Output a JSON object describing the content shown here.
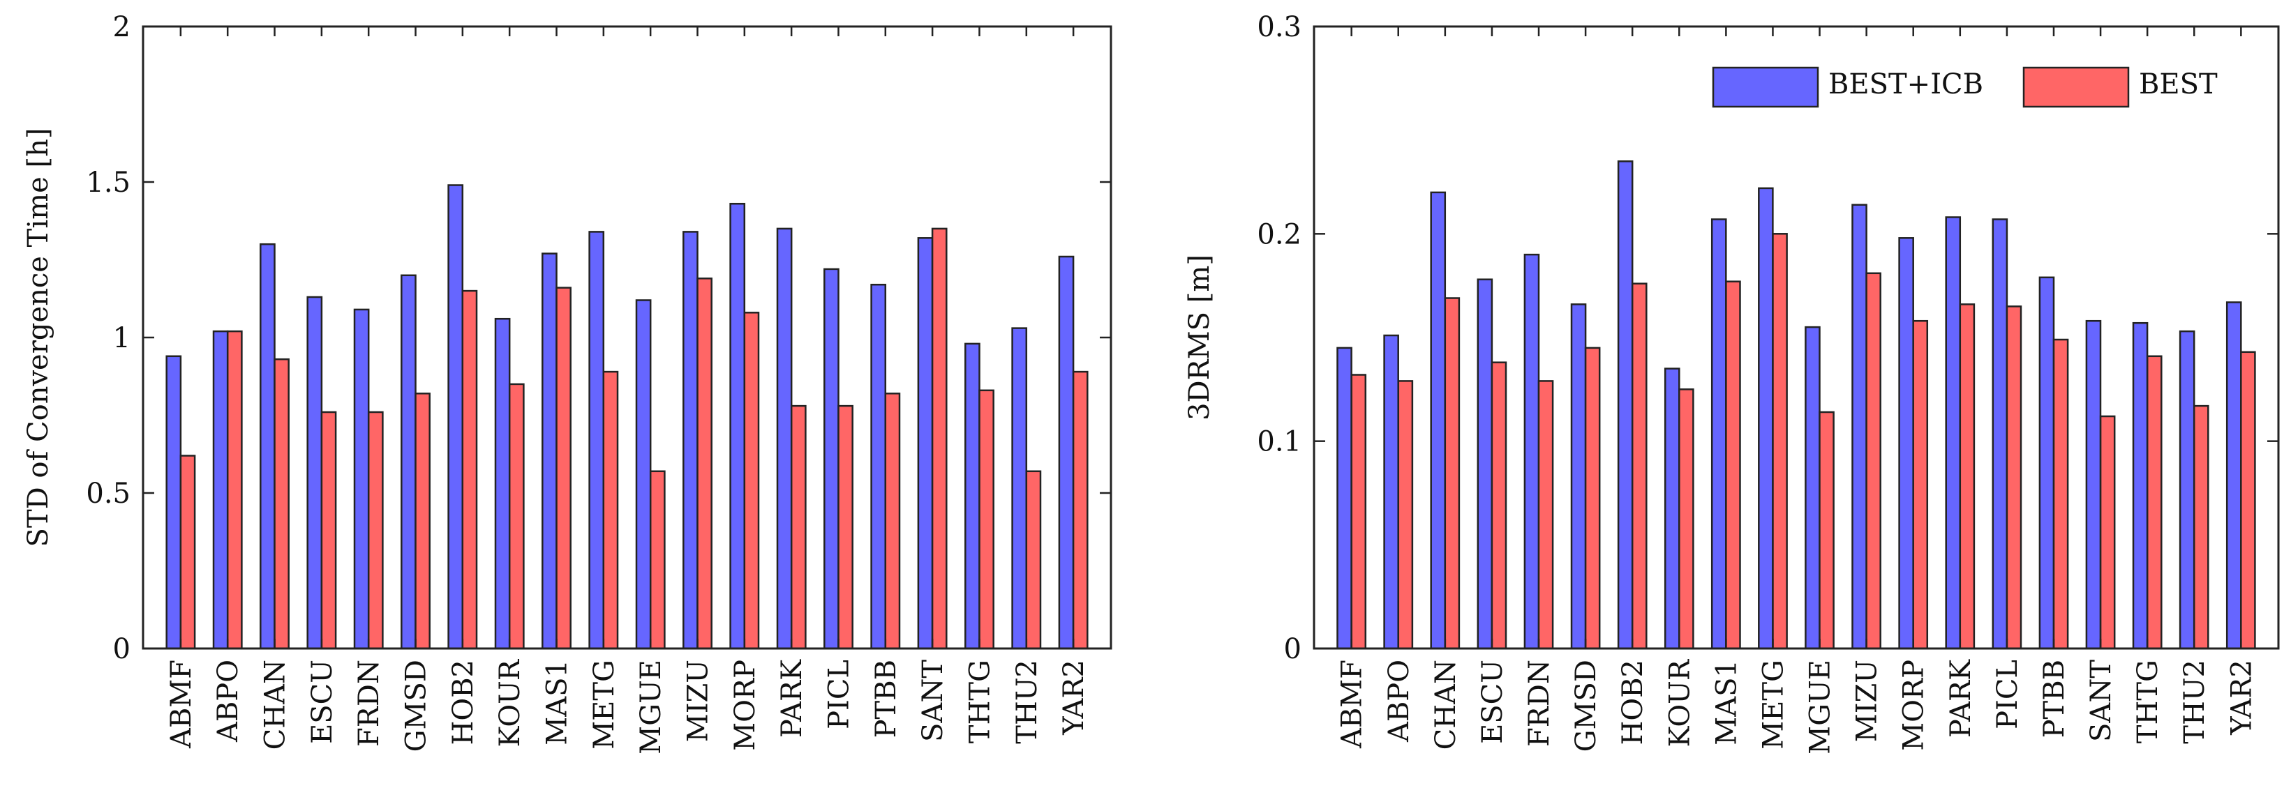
{
  "legend": {
    "position": "top-right of right chart",
    "entries": [
      {
        "label": "BEST+ICB",
        "color": "#6666ff"
      },
      {
        "label": "BEST",
        "color": "#ff6666"
      }
    ]
  },
  "chart_data": [
    {
      "type": "bar",
      "title": "",
      "xlabel": "",
      "ylabel": "STD of Convergence Time [h]",
      "ylim": [
        0,
        2
      ],
      "yticks": [
        0,
        0.5,
        1,
        1.5,
        2
      ],
      "ytick_labels": [
        "0",
        "0.5",
        "1",
        "1.5",
        "2"
      ],
      "categories": [
        "ABMF",
        "ABPO",
        "CHAN",
        "ESCU",
        "FRDN",
        "GMSD",
        "HOB2",
        "KOUR",
        "MAS1",
        "METG",
        "MGUE",
        "MIZU",
        "MORP",
        "PARK",
        "PICL",
        "PTBB",
        "SANT",
        "THTG",
        "THU2",
        "YAR2"
      ],
      "series": [
        {
          "name": "BEST+ICB",
          "color": "#6666ff",
          "values": [
            0.94,
            1.02,
            1.3,
            1.13,
            1.09,
            1.2,
            1.49,
            1.06,
            1.27,
            1.34,
            1.12,
            1.34,
            1.43,
            1.35,
            1.22,
            1.17,
            1.32,
            0.98,
            1.03,
            1.26
          ]
        },
        {
          "name": "BEST",
          "color": "#ff6666",
          "values": [
            0.62,
            1.02,
            0.93,
            0.76,
            0.76,
            0.82,
            1.15,
            0.85,
            1.16,
            0.89,
            0.57,
            1.19,
            1.08,
            0.78,
            0.78,
            0.82,
            1.35,
            0.83,
            0.57,
            0.89
          ]
        }
      ]
    },
    {
      "type": "bar",
      "title": "",
      "xlabel": "",
      "ylabel": "3DRMS [m]",
      "ylim": [
        0,
        0.3
      ],
      "yticks": [
        0,
        0.1,
        0.2,
        0.3
      ],
      "ytick_labels": [
        "0",
        "0.1",
        "0.2",
        "0.3"
      ],
      "categories": [
        "ABMF",
        "ABPO",
        "CHAN",
        "ESCU",
        "FRDN",
        "GMSD",
        "HOB2",
        "KOUR",
        "MAS1",
        "METG",
        "MGUE",
        "MIZU",
        "MORP",
        "PARK",
        "PICL",
        "PTBB",
        "SANT",
        "THTG",
        "THU2",
        "YAR2"
      ],
      "series": [
        {
          "name": "BEST+ICB",
          "color": "#6666ff",
          "values": [
            0.145,
            0.151,
            0.22,
            0.178,
            0.19,
            0.166,
            0.235,
            0.135,
            0.207,
            0.222,
            0.155,
            0.214,
            0.198,
            0.208,
            0.207,
            0.179,
            0.158,
            0.157,
            0.153,
            0.167
          ]
        },
        {
          "name": "BEST",
          "color": "#ff6666",
          "values": [
            0.132,
            0.129,
            0.169,
            0.138,
            0.129,
            0.145,
            0.176,
            0.125,
            0.177,
            0.2,
            0.114,
            0.181,
            0.158,
            0.166,
            0.165,
            0.149,
            0.112,
            0.141,
            0.117,
            0.143
          ]
        }
      ]
    }
  ]
}
